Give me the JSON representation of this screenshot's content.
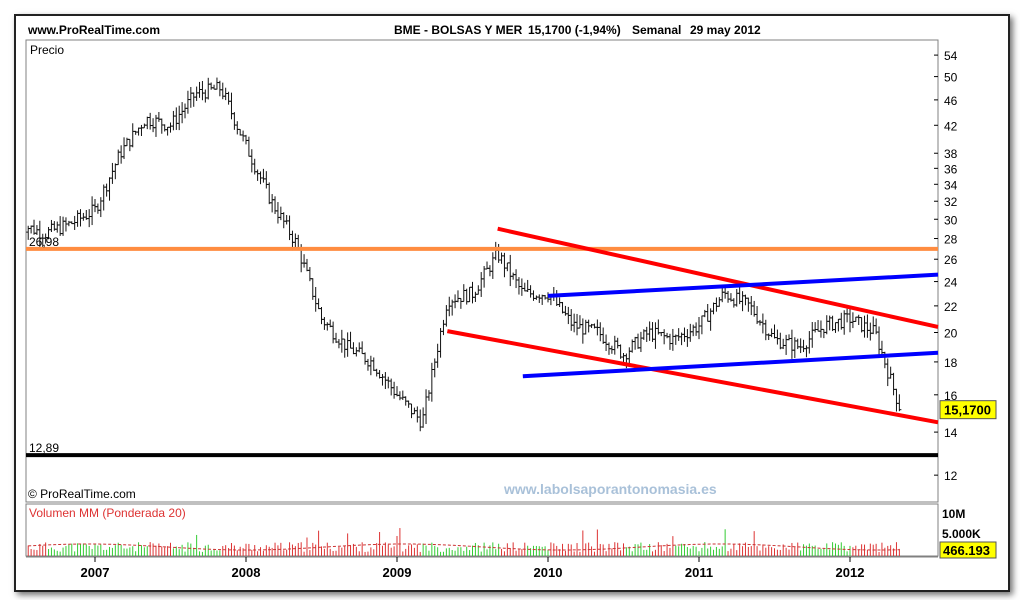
{
  "header": {
    "site": "www.ProRealTime.com",
    "instrument": "BME - BOLSAS Y MER",
    "price_change": "15,1700 (-1,94%)",
    "period": "Semanal",
    "date": "29 may 2012"
  },
  "footer": {
    "copyright": "© ProRealTime.com",
    "watermark": "www.labolsaporantonomasia.es"
  },
  "chart_data": [
    {
      "type": "line",
      "title": "Precio",
      "y_scale": "log",
      "ylim": [
        10.9,
        57
      ],
      "y_ticks": [
        "54",
        "50",
        "46",
        "42",
        "38",
        "36",
        "34",
        "32",
        "30",
        "28",
        "26",
        "24",
        "22",
        "20",
        "18",
        "16",
        "14",
        "12"
      ],
      "x_ticks": [
        "2007",
        "2008",
        "2009",
        "2010",
        "2011",
        "2012"
      ],
      "last_value_label": "15,1700",
      "reference_levels": [
        {
          "label": "26,98",
          "value": 26.98,
          "color": "#ff8c40"
        },
        {
          "label": "12,89",
          "value": 12.89,
          "color": "#000000"
        }
      ],
      "trend_lines": [
        {
          "color": "#ff0000",
          "from": [
            "2009-09",
            29
          ],
          "to": [
            "2012-09",
            20.4
          ]
        },
        {
          "color": "#ff0000",
          "from": [
            "2009-05",
            20.1
          ],
          "to": [
            "2012-09",
            14.5
          ]
        },
        {
          "color": "#0000ff",
          "from": [
            "2010-01",
            22.8
          ],
          "to": [
            "2012-09",
            24.6
          ]
        },
        {
          "color": "#0000ff",
          "from": [
            "2009-11",
            17.1
          ],
          "to": [
            "2012-09",
            18.6
          ]
        }
      ],
      "series": [
        {
          "type": "ohlc",
          "x": [
            "2006-07",
            "2006-09",
            "2006-11",
            "2007-01",
            "2007-03",
            "2007-05",
            "2007-07",
            "2007-09",
            "2007-11",
            "2008-01",
            "2008-03",
            "2008-05",
            "2008-07",
            "2008-09",
            "2008-11",
            "2009-01",
            "2009-03",
            "2009-05",
            "2009-07",
            "2009-09",
            "2009-11",
            "2010-01",
            "2010-03",
            "2010-05",
            "2010-07",
            "2010-09",
            "2010-11",
            "2011-01",
            "2011-03",
            "2011-05",
            "2011-07",
            "2011-09",
            "2011-11",
            "2012-01",
            "2012-03",
            "2012-05"
          ],
          "values": [
            29.5,
            28.5,
            29.5,
            31.0,
            38.0,
            43.0,
            42.0,
            47.0,
            48.0,
            39.0,
            32.0,
            27.5,
            21.0,
            19.0,
            18.0,
            16.0,
            14.5,
            22.5,
            23.0,
            26.5,
            23.0,
            23.0,
            20.5,
            20.0,
            18.5,
            20.0,
            19.5,
            20.5,
            23.0,
            22.0,
            19.5,
            19.0,
            20.5,
            21.0,
            20.0,
            15.17
          ]
        }
      ]
    },
    {
      "type": "bar",
      "title": "Volumen MM (Ponderada 20)",
      "y_ticks": [
        "10M",
        "5.000K"
      ],
      "last_value_label": "466.193",
      "up_color": "#33cc33",
      "down_color": "#dd3333",
      "average_color": "#cc3333"
    }
  ]
}
